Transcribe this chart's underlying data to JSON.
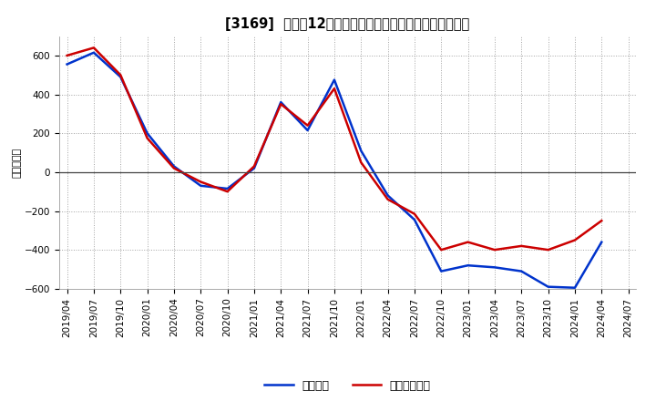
{
  "title": "[3169]  利益だ12か月移動合計の対前年同期増減額の推移",
  "ylabel": "（百万円）",
  "ylim": [
    -600,
    700
  ],
  "yticks": [
    -600,
    -400,
    -200,
    0,
    200,
    400,
    600
  ],
  "x_labels": [
    "2019/04",
    "2019/07",
    "2019/10",
    "2020/01",
    "2020/04",
    "2020/07",
    "2020/10",
    "2021/01",
    "2021/04",
    "2021/07",
    "2021/10",
    "2022/01",
    "2022/04",
    "2022/07",
    "2022/10",
    "2023/01",
    "2023/04",
    "2023/07",
    "2023/10",
    "2024/01",
    "2024/04",
    "2024/07"
  ],
  "keijo_color": "#0033cc",
  "toki_color": "#cc0000",
  "keijo_label": "経常利益",
  "toki_label": "当期經常利益",
  "keijo_data": [
    [
      "2019/04",
      555
    ],
    [
      "2019/07",
      615
    ],
    [
      "2019/10",
      490
    ],
    [
      "2020/01",
      200
    ],
    [
      "2020/04",
      30
    ],
    [
      "2020/07",
      -70
    ],
    [
      "2020/10",
      -85
    ],
    [
      "2021/01",
      20
    ],
    [
      "2021/04",
      360
    ],
    [
      "2021/07",
      215
    ],
    [
      "2021/10",
      475
    ],
    [
      "2022/01",
      110
    ],
    [
      "2022/04",
      -120
    ],
    [
      "2022/07",
      -245
    ],
    [
      "2022/10",
      -510
    ],
    [
      "2023/01",
      -480
    ],
    [
      "2023/04",
      -490
    ],
    [
      "2023/07",
      -510
    ],
    [
      "2023/10",
      -590
    ],
    [
      "2024/01",
      -595
    ],
    [
      "2024/04",
      -360
    ],
    [
      "2024/07",
      null
    ]
  ],
  "toki_data": [
    [
      "2019/04",
      600
    ],
    [
      "2019/07",
      640
    ],
    [
      "2019/10",
      500
    ],
    [
      "2020/01",
      175
    ],
    [
      "2020/04",
      20
    ],
    [
      "2020/07",
      -50
    ],
    [
      "2020/10",
      -100
    ],
    [
      "2021/01",
      30
    ],
    [
      "2021/04",
      350
    ],
    [
      "2021/07",
      240
    ],
    [
      "2021/10",
      430
    ],
    [
      "2022/01",
      50
    ],
    [
      "2022/04",
      -140
    ],
    [
      "2022/07",
      -215
    ],
    [
      "2022/10",
      -400
    ],
    [
      "2023/01",
      -360
    ],
    [
      "2023/04",
      -400
    ],
    [
      "2023/07",
      -380
    ],
    [
      "2023/10",
      -400
    ],
    [
      "2024/01",
      -350
    ],
    [
      "2024/04",
      -250
    ],
    [
      "2024/07",
      null
    ]
  ],
  "background_color": "#ffffff",
  "grid_color": "#999999",
  "line_width": 1.8,
  "title_fontsize": 10.5,
  "legend_fontsize": 9,
  "tick_fontsize": 7.5,
  "ylabel_fontsize": 8
}
